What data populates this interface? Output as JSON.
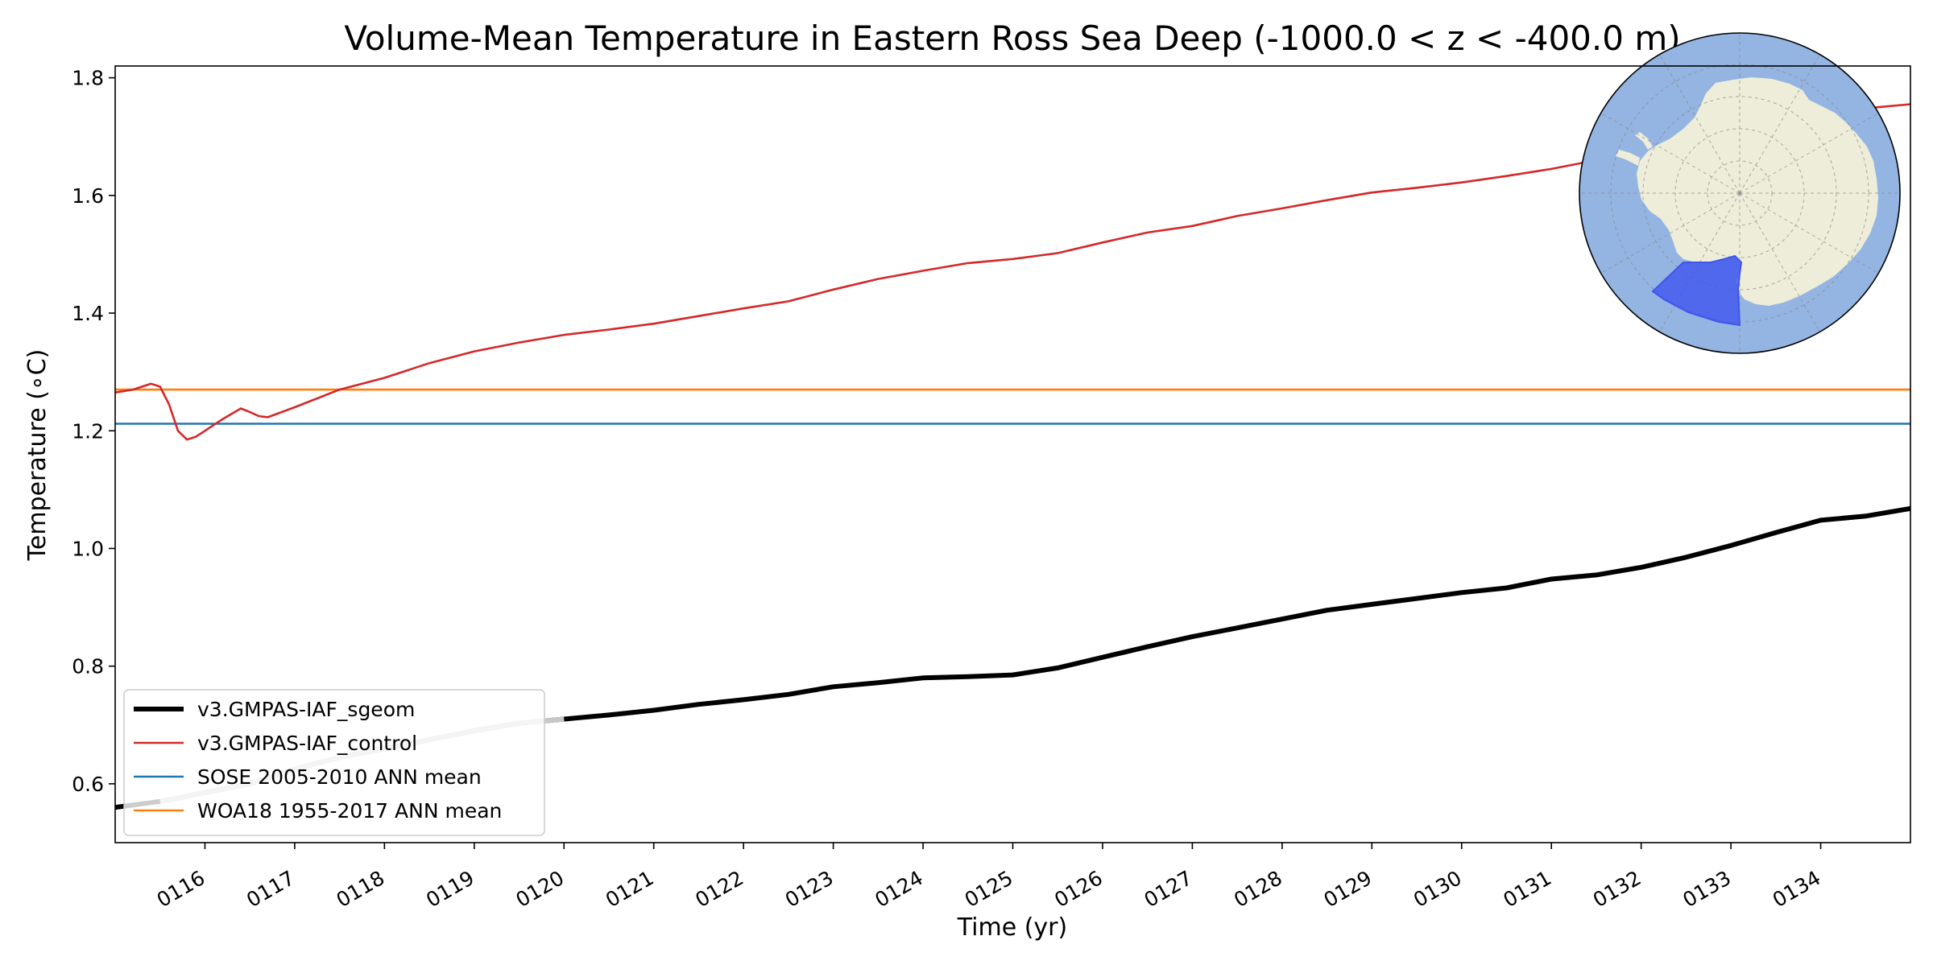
{
  "chart_data": {
    "type": "line",
    "title": "Volume-Mean Temperature in Eastern Ross Sea Deep (-1000.0 < z < -400.0 m)",
    "xlabel": "Time (yr)",
    "ylabel": "Temperature (∘C)",
    "xlim": [
      115.0,
      135.0
    ],
    "ylim": [
      0.5,
      1.82
    ],
    "x_ticks": [
      "0116",
      "0117",
      "0118",
      "0119",
      "0120",
      "0121",
      "0122",
      "0123",
      "0124",
      "0125",
      "0126",
      "0127",
      "0128",
      "0129",
      "0130",
      "0131",
      "0132",
      "0133",
      "0134"
    ],
    "y_ticks": [
      "0.6",
      "0.8",
      "1.0",
      "1.2",
      "1.4",
      "1.6",
      "1.8"
    ],
    "grid": false,
    "legend_position": "lower-left",
    "series": [
      {
        "name": "v3.GMPAS-IAF_sgeom",
        "color": "#000000",
        "style": "thick",
        "x": [
          115.0,
          115.5,
          116.0,
          116.5,
          117.0,
          117.5,
          118.0,
          118.5,
          119.0,
          119.5,
          120.0,
          120.5,
          121.0,
          121.5,
          122.0,
          122.5,
          123.0,
          123.5,
          124.0,
          124.5,
          125.0,
          125.5,
          126.0,
          126.5,
          127.0,
          127.5,
          128.0,
          128.5,
          129.0,
          129.5,
          130.0,
          130.5,
          131.0,
          131.5,
          132.0,
          132.5,
          133.0,
          133.5,
          134.0,
          134.5,
          135.0
        ],
        "y": [
          0.56,
          0.57,
          0.585,
          0.6,
          0.625,
          0.645,
          0.66,
          0.675,
          0.69,
          0.703,
          0.71,
          0.717,
          0.725,
          0.735,
          0.743,
          0.752,
          0.765,
          0.772,
          0.78,
          0.782,
          0.785,
          0.797,
          0.815,
          0.833,
          0.85,
          0.865,
          0.88,
          0.895,
          0.905,
          0.915,
          0.925,
          0.933,
          0.948,
          0.955,
          0.968,
          0.985,
          1.005,
          1.027,
          1.048,
          1.055,
          1.068
        ]
      },
      {
        "name": "v3.GMPAS-IAF_control",
        "color": "#d62728",
        "style": "thin",
        "x": [
          115.0,
          115.2,
          115.3,
          115.4,
          115.5,
          115.6,
          115.7,
          115.8,
          115.9,
          116.0,
          116.2,
          116.4,
          116.5,
          116.6,
          116.7,
          117.0,
          117.5,
          118.0,
          118.5,
          119.0,
          119.5,
          120.0,
          120.5,
          121.0,
          121.5,
          122.0,
          122.5,
          123.0,
          123.5,
          124.0,
          124.5,
          125.0,
          125.5,
          126.0,
          126.5,
          127.0,
          127.5,
          128.0,
          128.5,
          129.0,
          129.5,
          130.0,
          130.5,
          131.0,
          131.5,
          132.0,
          132.5,
          133.0,
          133.5,
          134.0,
          134.5,
          135.0
        ],
        "y": [
          1.265,
          1.27,
          1.275,
          1.28,
          1.275,
          1.245,
          1.2,
          1.185,
          1.19,
          1.2,
          1.22,
          1.238,
          1.232,
          1.225,
          1.223,
          1.24,
          1.27,
          1.29,
          1.315,
          1.335,
          1.35,
          1.363,
          1.372,
          1.382,
          1.395,
          1.408,
          1.42,
          1.44,
          1.458,
          1.472,
          1.485,
          1.492,
          1.502,
          1.52,
          1.537,
          1.548,
          1.565,
          1.578,
          1.592,
          1.605,
          1.613,
          1.622,
          1.633,
          1.645,
          1.66,
          1.675,
          1.69,
          1.705,
          1.72,
          1.735,
          1.748,
          1.755
        ]
      },
      {
        "name": "SOSE 2005-2010 ANN mean",
        "color": "#1f77b4",
        "style": "hline",
        "x": [
          115.0,
          135.0
        ],
        "y": [
          1.212,
          1.212
        ]
      },
      {
        "name": "WOA18 1955-2017 ANN mean",
        "color": "#ff7f0e",
        "style": "hline",
        "x": [
          115.0,
          135.0
        ],
        "y": [
          1.27,
          1.27
        ]
      }
    ],
    "overlay_segment": {
      "color": "#c8c8c8",
      "x": [
        115.5,
        116.0,
        116.5,
        117.0,
        117.5,
        118.0,
        118.5,
        119.0,
        119.5,
        120.0
      ],
      "y": [
        0.57,
        0.585,
        0.6,
        0.625,
        0.645,
        0.66,
        0.675,
        0.69,
        0.703,
        0.71
      ]
    }
  },
  "inset_map": {
    "ocean_color": "#94b4e2",
    "land_color": "#eeedda",
    "region_color": "#3f55ee"
  }
}
